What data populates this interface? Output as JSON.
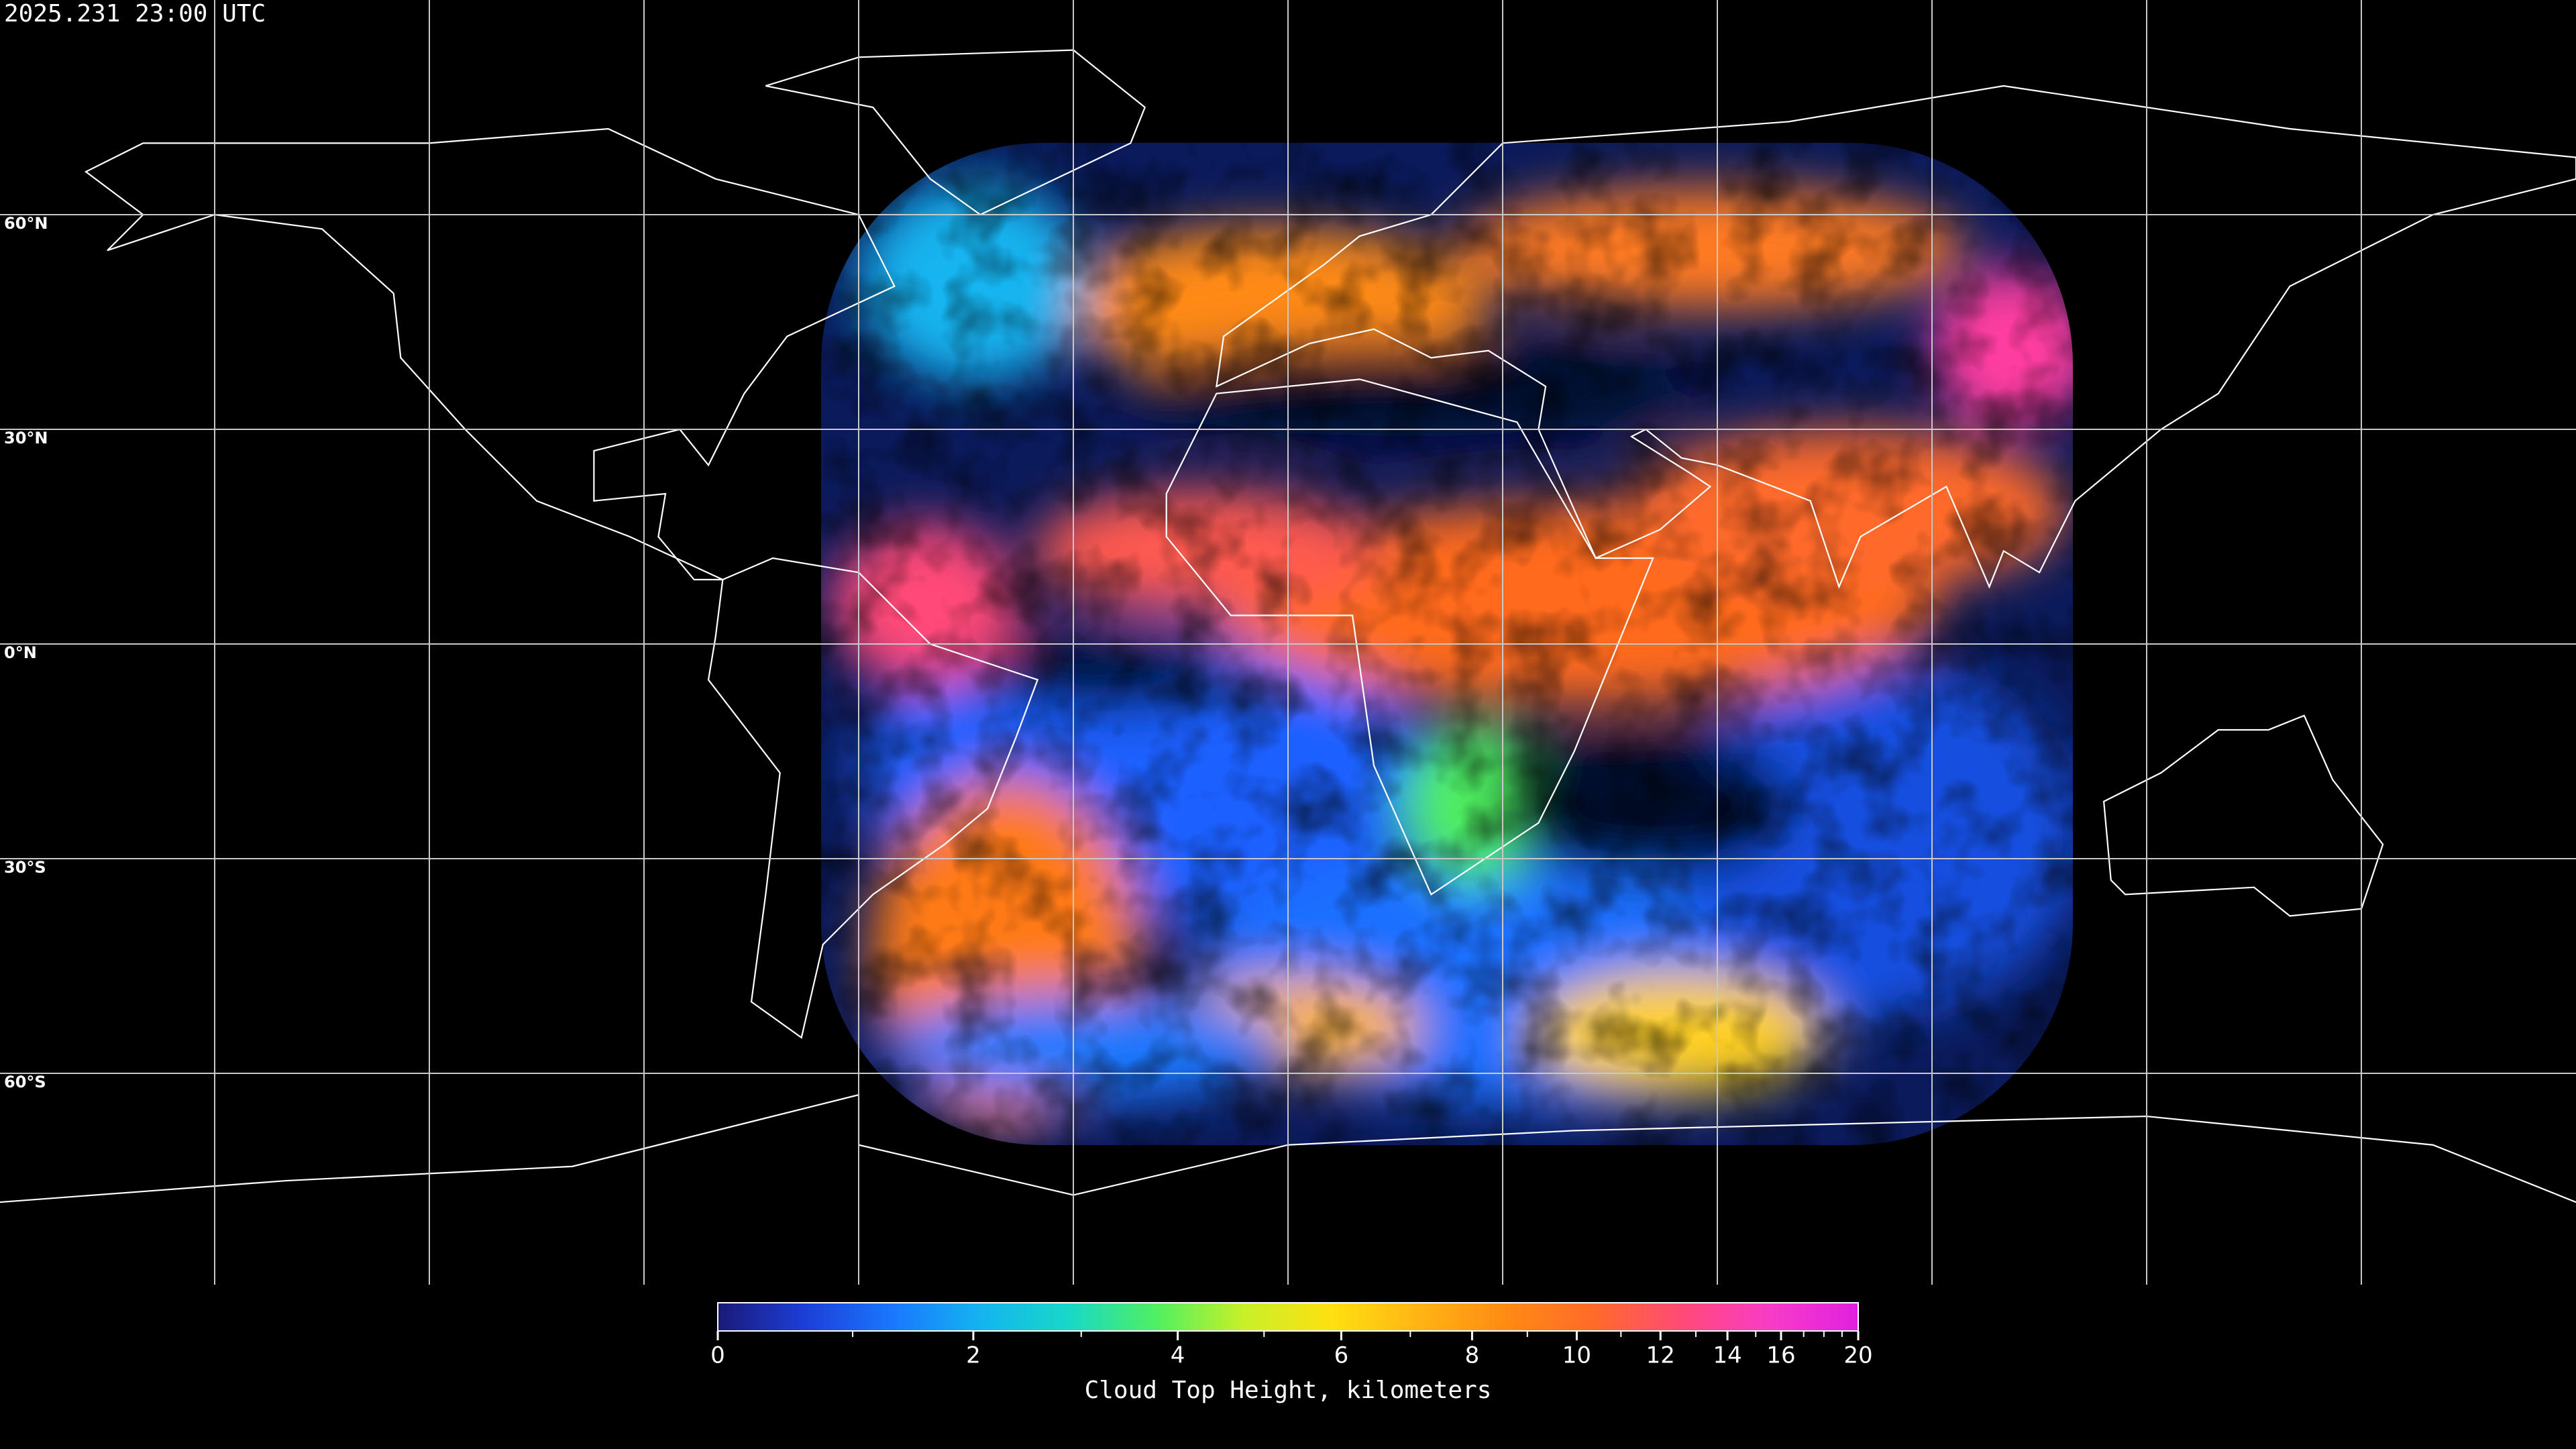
{
  "timestamp": "2025.231 23:00 UTC",
  "latitude_labels": [
    "60°N",
    "30°N",
    "0°N",
    "30°S",
    "60°S"
  ],
  "colorbar": {
    "label": "Cloud Top Height, kilometers",
    "range": [
      0,
      20
    ],
    "ticks": [
      0,
      2,
      4,
      6,
      8,
      10,
      12,
      14,
      16,
      20
    ],
    "minor_ticks": [
      1,
      3,
      5,
      7,
      9,
      11,
      13,
      15,
      17,
      18,
      19
    ],
    "colormap": [
      "#1a1a78",
      "#1c3fd8",
      "#1a78ff",
      "#14b4f0",
      "#18d8c8",
      "#50f060",
      "#c8f028",
      "#ffe010",
      "#ffb414",
      "#ff8a14",
      "#ff6a2a",
      "#ff4a78",
      "#f83cc8",
      "#e020e0"
    ]
  }
}
